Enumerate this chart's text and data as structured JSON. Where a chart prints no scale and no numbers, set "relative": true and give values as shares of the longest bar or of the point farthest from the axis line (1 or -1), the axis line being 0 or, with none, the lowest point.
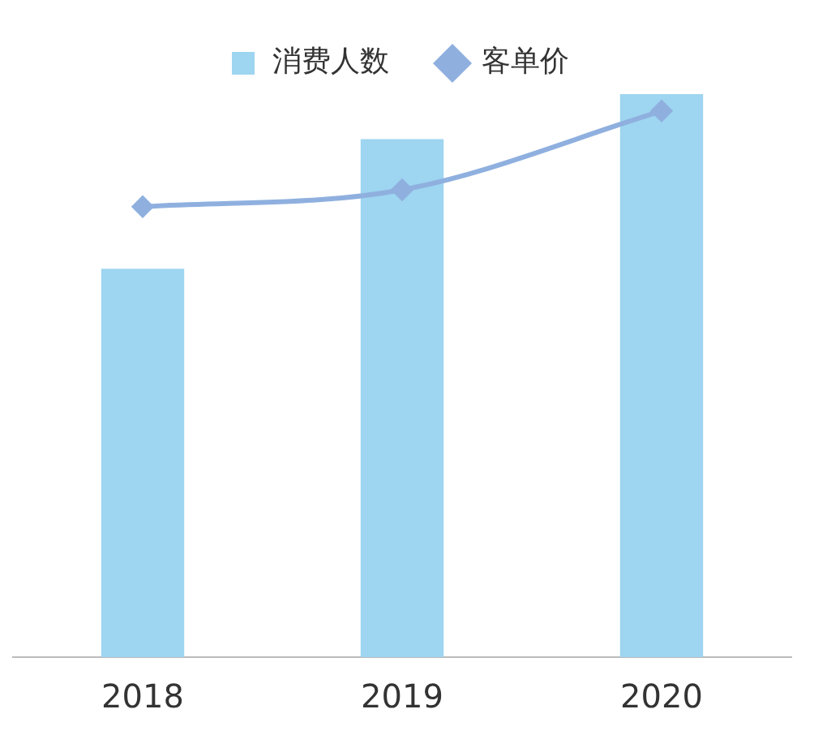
{
  "chart_data": {
    "type": "bar",
    "relative": true,
    "categories": [
      "2018",
      "2019",
      "2020"
    ],
    "legend": "top",
    "series": [
      {
        "name": "消费人数",
        "color": "#9ed5f0",
        "values": [
          0.69,
          0.92,
          1
        ]
      },
      {
        "name": "客单价",
        "type": "line",
        "color": "#8fb0df",
        "marker": "diamond",
        "values": [
          0.8,
          0.83,
          0.97
        ]
      }
    ]
  }
}
